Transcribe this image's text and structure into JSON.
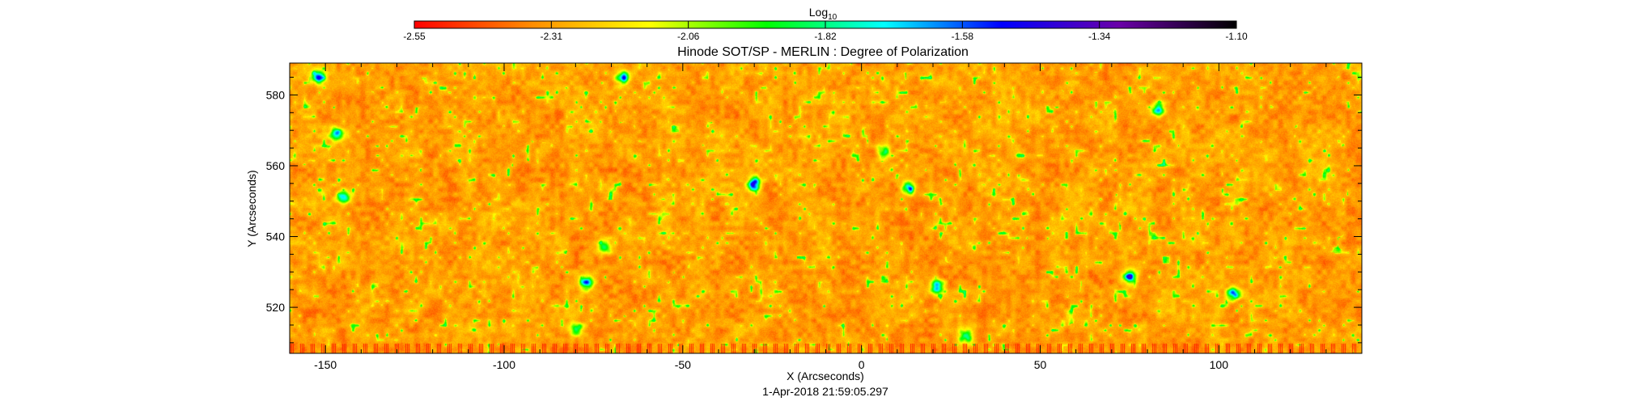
{
  "chart_data": {
    "type": "heatmap",
    "title": "Hinode SOT/SP - MERLIN : Degree of Polarization",
    "xlabel": "X (Arcseconds)",
    "ylabel": "Y (Arcseconds)",
    "timestamp": "1-Apr-2018 21:59:05.297",
    "xlim": [
      -160,
      140
    ],
    "ylim": [
      507,
      589
    ],
    "x_ticks": [
      -150,
      -100,
      -50,
      0,
      50,
      100
    ],
    "y_ticks": [
      520,
      540,
      560,
      580
    ],
    "grid": false,
    "colorbar": {
      "label_main": "Log",
      "label_sub": "10",
      "range": [
        -2.55,
        -1.1
      ],
      "ticks": [
        "-2.55",
        "-2.31",
        "-2.06",
        "-1.82",
        "-1.58",
        "-1.34",
        "-1.10"
      ],
      "colors": [
        "#ff0000",
        "#ff8c00",
        "#ffff00",
        "#00ff00",
        "#00ffff",
        "#0000ff",
        "#6a00a8",
        "#000000"
      ]
    },
    "field": {
      "background_range": [
        -2.45,
        -2.15
      ],
      "strong_features": [
        {
          "x": -152,
          "y": 585,
          "value": -1.5
        },
        {
          "x": -67,
          "y": 585,
          "value": -1.5
        },
        {
          "x": -30,
          "y": 555,
          "value": -1.3
        },
        {
          "x": 13,
          "y": 554,
          "value": -1.4
        },
        {
          "x": -145,
          "y": 551,
          "value": -1.5
        },
        {
          "x": -147,
          "y": 569,
          "value": -1.6
        },
        {
          "x": -77,
          "y": 527,
          "value": -1.5
        },
        {
          "x": -80,
          "y": 514,
          "value": -1.6
        },
        {
          "x": 75,
          "y": 529,
          "value": -1.4
        },
        {
          "x": 83,
          "y": 576,
          "value": -1.6
        },
        {
          "x": 104,
          "y": 524,
          "value": -1.5
        },
        {
          "x": 29,
          "y": 512,
          "value": -1.6
        },
        {
          "x": 21,
          "y": 526,
          "value": -1.5
        },
        {
          "x": 6,
          "y": 564,
          "value": -1.7
        },
        {
          "x": -72,
          "y": 537,
          "value": -1.8
        }
      ]
    }
  }
}
